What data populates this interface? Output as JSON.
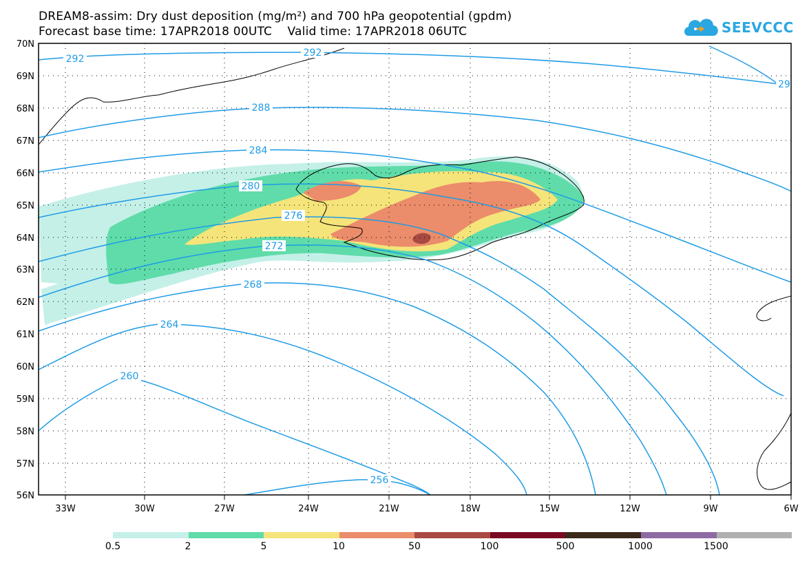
{
  "title": {
    "line1": "DREAM8-assim: Dry dust deposition (mg/m²) and 700 hPa geopotential (gpdm)",
    "line2": "Forecast base time: 17APR2018 00UTC    Valid time: 17APR2018 06UTC"
  },
  "logo": {
    "text": "SEEVCCC",
    "icon": "cloud-icon",
    "color": "#2aa7e0"
  },
  "map": {
    "lat_labels": [
      "70N",
      "69N",
      "68N",
      "67N",
      "66N",
      "65N",
      "64N",
      "63N",
      "62N",
      "61N",
      "60N",
      "59N",
      "58N",
      "57N",
      "56N"
    ],
    "lon_labels": [
      "33W",
      "30W",
      "27W",
      "24W",
      "21W",
      "18W",
      "15W",
      "12W",
      "9W",
      "6W"
    ],
    "contour_labels": [
      "292",
      "292",
      "29",
      "288",
      "284",
      "280",
      "276",
      "272",
      "268",
      "264",
      "260",
      "256"
    ],
    "contour_color": "#1e9be6"
  },
  "legend": {
    "colors": [
      "#c4f0e8",
      "#5fdcaa",
      "#f5e47a",
      "#eb8c6a",
      "#a84a42",
      "#7a0a22",
      "#3a2a1a",
      "#8e6aa2",
      "#b0b0b0"
    ],
    "labels": [
      "0.5",
      "2",
      "5",
      "10",
      "50",
      "100",
      "500",
      "1000",
      "1500"
    ]
  }
}
